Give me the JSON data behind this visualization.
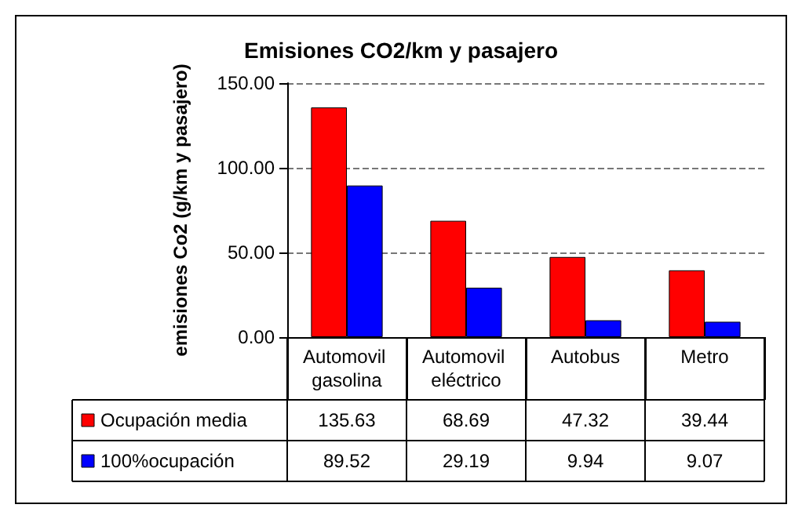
{
  "chart_data": {
    "type": "bar",
    "title": "Emisiones CO2/km y pasajero",
    "ylabel": "emisiones Co2 (g/km y pasajero)",
    "categories": [
      "Automovil gasolina",
      "Automovil eléctrico",
      "Autobus",
      "Metro"
    ],
    "series": [
      {
        "name": "Ocupación media",
        "color": "#ff0000",
        "values": [
          135.63,
          68.69,
          47.32,
          39.44
        ],
        "value_labels": [
          "135.63",
          "68.69",
          "47.32",
          "39.44"
        ]
      },
      {
        "name": "100%ocupación",
        "color": "#0000ff",
        "values": [
          89.52,
          29.19,
          9.94,
          9.07
        ],
        "value_labels": [
          "89.52",
          "29.19",
          "9.94",
          "9.07"
        ]
      }
    ],
    "ylim": [
      0,
      150
    ],
    "yticks": [
      {
        "value": 0,
        "label": "0.00"
      },
      {
        "value": 50,
        "label": "50.00"
      },
      {
        "value": 100,
        "label": "100.00"
      },
      {
        "value": 150,
        "label": "150.00"
      }
    ],
    "grid": "y",
    "legend": "bottom"
  }
}
